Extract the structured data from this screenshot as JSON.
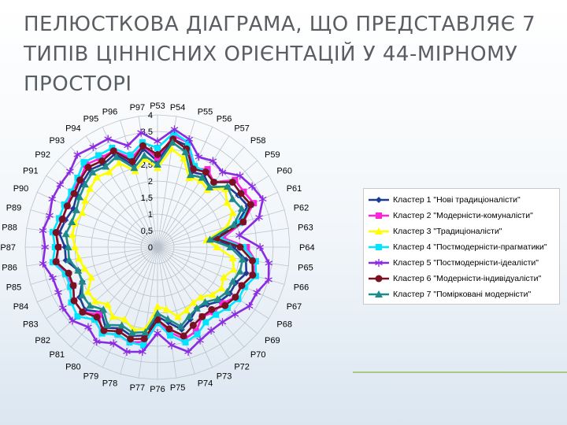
{
  "slide": {
    "title": "ПЕЛЮСТКОВА ДІАГРАМА, ЩО ПРЕДСТАВЛЯЄ 7 ТИПІВ ЦІННІСНИХ ОРІЄНТАЦІЙ У 44-МІРНОМУ ПРОСТОРІ"
  },
  "chart_data": {
    "type": "radar",
    "title": "",
    "categories": [
      "P53",
      "P54",
      "P55",
      "P56",
      "P57",
      "P58",
      "P59",
      "P60",
      "P61",
      "P62",
      "P63",
      "P64",
      "P65",
      "P66",
      "P67",
      "P68",
      "P69",
      "P70",
      "P72",
      "P73",
      "P74",
      "P75",
      "P76",
      "P77",
      "P78",
      "P79",
      "P80",
      "P81",
      "P82",
      "P83",
      "P84",
      "P85",
      "P86",
      "P87",
      "P88",
      "P89",
      "P90",
      "P91",
      "P92",
      "P93",
      "P94",
      "P95",
      "P96",
      "P97"
    ],
    "r_ticks": [
      "0",
      "0,5",
      "1",
      "1,5",
      "2",
      "2,5",
      "3",
      "3,5",
      "4"
    ],
    "r_range": [
      0,
      4
    ],
    "grid": true,
    "legend_position": "right",
    "series": [
      {
        "name": "Кластер 1 \"Нові традиціоналісти\"",
        "color": "#1f3a93",
        "marker": "diamond",
        "values": [
          2.6,
          3.3,
          3.2,
          2.5,
          2.6,
          2.4,
          2.8,
          2.9,
          3.0,
          2.5,
          1.7,
          2.3,
          2.7,
          2.8,
          2.6,
          2.6,
          2.5,
          2.3,
          2.2,
          2.4,
          2.6,
          2.3,
          2.1,
          2.7,
          2.8,
          2.7,
          2.9,
          2.6,
          2.9,
          2.8,
          2.5,
          2.5,
          2.8,
          2.8,
          3.0,
          2.9,
          2.8,
          2.9,
          3.0,
          3.1,
          3.0,
          3.1,
          2.6,
          3.0
        ]
      },
      {
        "name": "Кластер 2 \"Модерністи-комуналісти\"",
        "color": "#ff22dd",
        "marker": "square",
        "values": [
          2.7,
          3.4,
          3.3,
          2.6,
          2.8,
          2.6,
          3.1,
          3.1,
          3.2,
          2.7,
          2.0,
          2.7,
          3.0,
          3.0,
          2.8,
          2.8,
          2.6,
          2.6,
          2.5,
          2.8,
          2.9,
          2.6,
          2.2,
          2.9,
          3.0,
          2.9,
          3.1,
          2.7,
          3.0,
          3.0,
          2.8,
          2.9,
          3.1,
          3.0,
          3.1,
          3.0,
          3.0,
          3.1,
          3.1,
          3.3,
          3.2,
          3.2,
          2.8,
          3.1
        ]
      },
      {
        "name": "Кластер 3 \"Традиціоналісти\"",
        "color": "#ffff00",
        "marker": "triangle",
        "values": [
          2.4,
          3.0,
          2.8,
          2.3,
          2.4,
          2.3,
          2.7,
          2.5,
          2.5,
          2.2,
          1.5,
          1.8,
          2.3,
          2.4,
          2.2,
          2.3,
          2.2,
          2.0,
          2.0,
          2.1,
          2.2,
          1.9,
          1.8,
          2.5,
          2.6,
          2.4,
          2.5,
          2.3,
          2.5,
          2.5,
          2.2,
          2.3,
          2.4,
          2.5,
          2.6,
          2.6,
          2.5,
          2.6,
          2.7,
          2.8,
          2.7,
          2.8,
          2.4,
          2.7
        ]
      },
      {
        "name": "Кластер 4 \"Постмодерністи-прагматики\"",
        "color": "#00e5ff",
        "marker": "square",
        "values": [
          3.0,
          3.5,
          3.3,
          2.7,
          2.7,
          2.6,
          3.0,
          3.0,
          3.1,
          2.6,
          1.9,
          2.6,
          3.0,
          3.1,
          2.9,
          2.9,
          2.8,
          2.7,
          2.7,
          2.9,
          3.0,
          2.7,
          2.3,
          3.0,
          3.0,
          2.9,
          3.1,
          2.9,
          3.2,
          3.1,
          2.9,
          2.9,
          3.2,
          3.1,
          3.2,
          3.1,
          3.1,
          3.1,
          3.2,
          3.4,
          3.3,
          3.3,
          2.9,
          3.2
        ]
      },
      {
        "name": "Кластер 5 \"Постмодерністи-ідеалісти\"",
        "color": "#8a2be2",
        "marker": "star",
        "values": [
          3.2,
          3.6,
          3.4,
          3.0,
          3.1,
          3.0,
          3.3,
          3.4,
          3.5,
          3.2,
          2.5,
          3.1,
          3.4,
          3.5,
          3.3,
          3.3,
          3.1,
          3.0,
          3.0,
          3.1,
          3.3,
          3.0,
          2.6,
          3.2,
          3.3,
          3.2,
          3.4,
          3.2,
          3.4,
          3.4,
          3.3,
          3.3,
          3.5,
          3.4,
          3.5,
          3.4,
          3.5,
          3.5,
          3.5,
          3.7,
          3.6,
          3.6,
          3.2,
          3.5
        ]
      },
      {
        "name": "Кластер 6 \"Модерністи-індивідуалісти\"",
        "color": "#7b1020",
        "marker": "circle",
        "values": [
          2.8,
          3.3,
          3.1,
          2.6,
          2.7,
          2.6,
          3.0,
          3.0,
          3.1,
          2.7,
          1.8,
          2.5,
          2.9,
          3.0,
          2.8,
          2.8,
          2.7,
          2.5,
          2.5,
          2.6,
          2.8,
          2.5,
          2.2,
          2.8,
          2.9,
          2.8,
          3.0,
          2.8,
          3.0,
          3.0,
          2.8,
          2.8,
          3.1,
          3.0,
          3.1,
          3.0,
          3.0,
          3.0,
          3.1,
          3.2,
          3.1,
          3.2,
          2.7,
          3.1
        ]
      },
      {
        "name": "Кластер 7 \"Поміркованi модерністи\"",
        "color": "#1e8a8a",
        "marker": "triangle",
        "values": [
          2.5,
          3.2,
          3.0,
          2.4,
          2.5,
          2.4,
          2.8,
          2.7,
          2.8,
          2.4,
          1.6,
          2.2,
          2.6,
          2.6,
          2.5,
          2.5,
          2.4,
          2.2,
          2.2,
          2.3,
          2.5,
          2.2,
          2.0,
          2.6,
          2.7,
          2.6,
          2.8,
          2.5,
          2.7,
          2.7,
          2.5,
          2.5,
          2.7,
          2.7,
          2.8,
          2.7,
          2.7,
          2.8,
          2.9,
          3.0,
          2.9,
          3.0,
          2.5,
          2.8
        ]
      }
    ]
  }
}
